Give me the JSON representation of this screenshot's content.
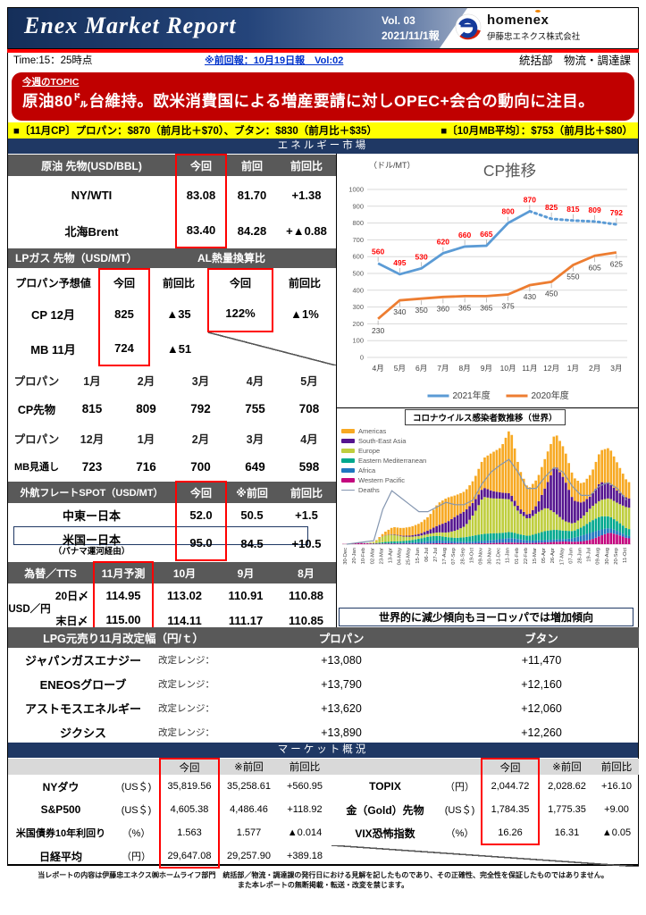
{
  "header": {
    "title": "Enex Market Report",
    "vol": "Vol. 03",
    "date": "2021/11/1報",
    "logo_text": "homenex",
    "company": "伊藤忠エネクス株式会社",
    "time": "Time:15：25時点",
    "prev_link": "※前回報：10月19日報　Vol:02",
    "dept": "統括部　物流・調達課"
  },
  "topic": {
    "label": "今週のTOPIC",
    "headline": "原油80㌦台維持。欧米消費国による増産要請に対しOPEC+会合の動向に注目。",
    "note": "（11月4日会合）"
  },
  "highlight_bar": {
    "left": "■〔11月CP〕プロパン：$870（前月比＋$70）、ブタン：$830（前月比＋$35）",
    "right": "■〔10月MB平均〕：$753（前月比＋$80）"
  },
  "sections": {
    "energy": "エネルギー市場",
    "market": "マーケット概況"
  },
  "crude_table": {
    "headers": [
      "原油 先物(USD/BBL)",
      "今回",
      "前回",
      "前回比"
    ],
    "rows": [
      [
        "NY/WTI",
        "83.08",
        "81.70",
        "+1.38"
      ],
      [
        "北海Brent",
        "83.40",
        "84.28",
        "+▲0.88"
      ]
    ]
  },
  "lpg_futures": {
    "header_left": "LPガス 先物（USD/MT）",
    "header_right": "AL熱量換算比",
    "subheaders": [
      "プロパン予想値",
      "今回",
      "前回比",
      "今回",
      "前回比"
    ],
    "rows": [
      [
        "CP 12月",
        "825",
        "▲35",
        "122%",
        "▲1%"
      ],
      [
        "MB 11月",
        "724",
        "▲51"
      ]
    ]
  },
  "propane_forward": {
    "rows": [
      {
        "label": "プロパン",
        "cells": [
          "1月",
          "2月",
          "3月",
          "4月",
          "5月"
        ]
      },
      {
        "label": "CP先物",
        "cells": [
          "815",
          "809",
          "792",
          "755",
          "708"
        ]
      },
      {
        "label": "プロパン",
        "cells": [
          "12月",
          "1月",
          "2月",
          "3月",
          "4月"
        ]
      },
      {
        "label": "MB見通し",
        "cells": [
          "723",
          "716",
          "700",
          "649",
          "598"
        ]
      }
    ]
  },
  "freight": {
    "headers": [
      "外航フレートSPOT（USD/MT）",
      "今回",
      "※前回",
      "前回比"
    ],
    "rows": [
      {
        "label": "中東ー日本",
        "sub": "",
        "v": [
          "52.0",
          "50.5",
          "+1.5"
        ]
      },
      {
        "label": "米国ー日本",
        "sub": "（パナマ運河経由）",
        "v": [
          "95.0",
          "84.5",
          "+10.5"
        ]
      }
    ]
  },
  "fx": {
    "headers": [
      "為替／TTS",
      "11月予測",
      "10月",
      "9月",
      "8月"
    ],
    "group_label": "USD／円",
    "rows": [
      [
        "20日〆",
        "114.95",
        "113.02",
        "110.91",
        "110.88"
      ],
      [
        "末日〆",
        "115.00",
        "114.11",
        "111.17",
        "110.85"
      ]
    ]
  },
  "covid_note": "世界的に減少傾向もヨーロッパでは増加傾向",
  "lpg_revision": {
    "headers": [
      "LPG元売り11月改定幅（円/ｔ）",
      "プロパン",
      "ブタン"
    ],
    "range_label": "改定レンジ：",
    "rows": [
      [
        "ジャパンガスエナジー",
        "+13,080",
        "+11,470"
      ],
      [
        "ENEOSグローブ",
        "+13,790",
        "+12,160"
      ],
      [
        "アストモスエネルギー",
        "+13,620",
        "+12,060"
      ],
      [
        "ジクシス",
        "+13,890",
        "+12,260"
      ]
    ]
  },
  "market_table": {
    "headers": [
      "今回",
      "※前回",
      "前回比"
    ],
    "left_rows": [
      [
        "NYダウ",
        "(US＄)",
        "35,819.56",
        "35,258.61",
        "+560.95"
      ],
      [
        "S&P500",
        "(US＄)",
        "4,605.38",
        "4,486.46",
        "+118.92"
      ],
      [
        "米国債券10年利回り",
        "（%）",
        "1.563",
        "1.577",
        "▲0.014"
      ],
      [
        "日経平均",
        "（円）",
        "29,647.08",
        "29,257.90",
        "+389.18"
      ]
    ],
    "right_rows": [
      [
        "TOPIX",
        "（円）",
        "2,044.72",
        "2,028.62",
        "+16.10"
      ],
      [
        "金（Gold）先物",
        "(US＄)",
        "1,784.35",
        "1,775.35",
        "+9.00"
      ],
      [
        "VIX恐怖指数",
        "（%）",
        "16.26",
        "16.31",
        "▲0.05"
      ]
    ]
  },
  "footer": {
    "line1": "当レポートの内容は伊藤忠エネクス㈱ホームライフ部門　統括部／物流・調達課の発行日における見解を記したものであり、その正確性、完全性を保証したものではありません。",
    "line2": "また本レポートの無断掲載・転送・改変を禁じます。"
  },
  "chart_data": [
    {
      "type": "line",
      "title": "CP推移",
      "unit_label": "（ドル/MT）",
      "categories": [
        "4月",
        "5月",
        "6月",
        "7月",
        "8月",
        "9月",
        "10月",
        "11月",
        "12月",
        "1月",
        "2月",
        "3月"
      ],
      "series": [
        {
          "name": "2021年度",
          "color": "#5b9bd5",
          "label_color": "#ff0000",
          "solid_until_index": 7,
          "values": [
            560,
            495,
            530,
            620,
            660,
            665,
            800,
            870,
            825,
            815,
            809,
            792
          ]
        },
        {
          "name": "2020年度",
          "color": "#ed7d31",
          "label_color": "#404040",
          "values": [
            230,
            340,
            350,
            360,
            365,
            365,
            375,
            430,
            450,
            550,
            605,
            625
          ]
        }
      ],
      "ylim": [
        0,
        1000
      ],
      "ytick": 100,
      "grid": true,
      "legend_position": "bottom"
    },
    {
      "type": "stacked-bar-line",
      "title": "コロナウイルス感染者数推移（世界）",
      "unit_note": "weekly new cases, approx millions (no axis shown in source)",
      "x_labels": [
        "30-Dec",
        "20-Jan",
        "10-Feb",
        "02-Mar",
        "23-Mar",
        "13-Apr",
        "04-May",
        "25-May",
        "15-Jun",
        "06-Jul",
        "27-Jul",
        "17-Aug",
        "07-Sep",
        "28-Sep",
        "19-Oct",
        "09-Nov",
        "30-Nov",
        "21-Dec",
        "11-Jan",
        "01-Feb",
        "22-Feb",
        "15-Mar",
        "05-Apr",
        "26-Apr",
        "17-May",
        "07-Jun",
        "28-Jun",
        "19-Jul",
        "09-Aug",
        "30-Aug",
        "20-Sep",
        "11-Oct"
      ],
      "legend": [
        {
          "key": "americas",
          "name": "Americas",
          "color": "#f7a923"
        },
        {
          "key": "se_asia",
          "name": "South-East Asia",
          "color": "#55158f"
        },
        {
          "key": "europe",
          "name": "Europe",
          "color": "#bfce3e"
        },
        {
          "key": "eastern_med",
          "name": "Eastern Mediterranean",
          "color": "#00a88e"
        },
        {
          "key": "africa",
          "name": "Africa",
          "color": "#2077c0"
        },
        {
          "key": "western_pacific",
          "name": "Western Pacific",
          "color": "#c4067e"
        },
        {
          "key": "deaths",
          "name": "Deaths",
          "color": "#8496b0",
          "line": true
        }
      ],
      "stack_order": [
        "western_pacific",
        "africa",
        "eastern_med",
        "europe",
        "se_asia",
        "americas"
      ],
      "series": {
        "americas": [
          0,
          0,
          0,
          0.02,
          0.12,
          0.3,
          0.33,
          0.38,
          0.45,
          0.6,
          0.95,
          1.05,
          0.9,
          0.85,
          0.95,
          1.25,
          1.65,
          1.95,
          2.8,
          1.7,
          1.15,
          1.1,
          1.3,
          1.4,
          1.3,
          1.0,
          0.8,
          0.95,
          1.35,
          1.55,
          1.15,
          0.7
        ],
        "se_asia": [
          0,
          0,
          0,
          0,
          0.01,
          0.02,
          0.03,
          0.05,
          0.09,
          0.16,
          0.3,
          0.45,
          0.62,
          0.65,
          0.52,
          0.4,
          0.32,
          0.26,
          0.26,
          0.2,
          0.16,
          0.35,
          0.95,
          2.05,
          1.8,
          1.0,
          0.62,
          0.5,
          0.78,
          0.62,
          0.5,
          0.4
        ],
        "europe": [
          0,
          0,
          0,
          0.05,
          0.28,
          0.3,
          0.2,
          0.15,
          0.12,
          0.12,
          0.15,
          0.2,
          0.32,
          0.48,
          0.95,
          1.6,
          1.5,
          1.48,
          1.4,
          0.92,
          0.72,
          0.9,
          1.0,
          0.72,
          0.42,
          0.32,
          0.42,
          0.6,
          0.7,
          0.78,
          0.8,
          0.92
        ],
        "eastern_med": [
          0,
          0,
          0.01,
          0.02,
          0.06,
          0.08,
          0.08,
          0.1,
          0.15,
          0.2,
          0.2,
          0.16,
          0.16,
          0.2,
          0.26,
          0.3,
          0.3,
          0.26,
          0.26,
          0.22,
          0.2,
          0.3,
          0.4,
          0.42,
          0.36,
          0.3,
          0.36,
          0.5,
          0.58,
          0.5,
          0.4,
          0.3
        ],
        "africa": [
          0,
          0,
          0,
          0,
          0.01,
          0.02,
          0.03,
          0.05,
          0.07,
          0.1,
          0.12,
          0.1,
          0.08,
          0.07,
          0.08,
          0.1,
          0.12,
          0.16,
          0.2,
          0.15,
          0.1,
          0.1,
          0.1,
          0.1,
          0.1,
          0.16,
          0.26,
          0.3,
          0.26,
          0.2,
          0.15,
          0.1
        ],
        "western_pacific": [
          0.01,
          0.06,
          0.04,
          0.02,
          0.02,
          0.02,
          0.02,
          0.02,
          0.02,
          0.03,
          0.04,
          0.04,
          0.03,
          0.03,
          0.03,
          0.04,
          0.05,
          0.06,
          0.07,
          0.06,
          0.05,
          0.06,
          0.08,
          0.1,
          0.12,
          0.1,
          0.12,
          0.2,
          0.36,
          0.5,
          0.4,
          0.25
        ],
        "deaths": [
          0,
          1,
          2,
          3,
          30,
          46,
          40,
          34,
          28,
          28,
          32,
          36,
          34,
          34,
          38,
          52,
          62,
          68,
          73,
          62,
          48,
          48,
          58,
          66,
          62,
          50,
          42,
          42,
          50,
          53,
          48,
          38
        ]
      },
      "annotation": "世界的に減少傾向もヨーロッパでは増加傾向"
    }
  ]
}
